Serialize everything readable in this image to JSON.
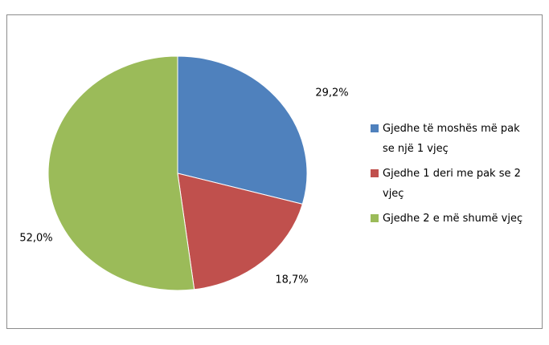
{
  "chart_data": {
    "type": "pie",
    "categories": [
      "Gjedhe të moshës më pak se një 1 vjeç",
      "Gjedhe 1 deri me pak se 2 vjeç",
      "Gjedhe 2 e më shumë vjeç"
    ],
    "values": [
      29.2,
      18.7,
      52.0
    ],
    "value_labels": [
      "29,2%",
      "18,7%",
      "52,0%"
    ],
    "colors": [
      "#4f81bd",
      "#c0504d",
      "#9bbb59"
    ],
    "legend": "right"
  }
}
